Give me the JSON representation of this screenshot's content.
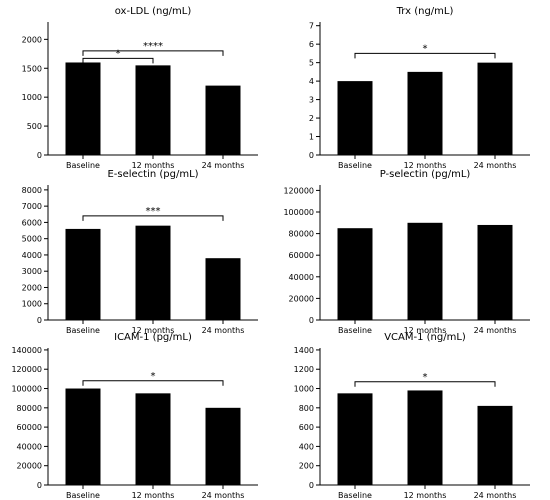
{
  "chart_data": [
    {
      "type": "bar",
      "title": "ox-LDL (ng/mL)",
      "categories": [
        "Baseline",
        "12 months",
        "24 months"
      ],
      "values": [
        1600,
        1550,
        1200
      ],
      "ylim": [
        0,
        2300
      ],
      "yticks": [
        0,
        500,
        1000,
        1500,
        2000
      ],
      "bar_color": "#000000",
      "annotations": [
        {
          "from": 0,
          "to": 1,
          "y": 1670,
          "label": "*"
        },
        {
          "from": 0,
          "to": 2,
          "y": 1800,
          "label": "****"
        }
      ]
    },
    {
      "type": "bar",
      "title": "Trx (ng/mL)",
      "categories": [
        "Baseline",
        "12 months",
        "24 months"
      ],
      "values": [
        4,
        4.5,
        5
      ],
      "ylim": [
        0,
        7.2
      ],
      "yticks": [
        0,
        1,
        2,
        3,
        4,
        5,
        6,
        7
      ],
      "bar_color": "#000000",
      "annotations": [
        {
          "from": 0,
          "to": 2,
          "y": 5.5,
          "label": "*"
        }
      ]
    },
    {
      "type": "bar",
      "title": "E-selectin (pg/mL)",
      "categories": [
        "Baseline",
        "12 months",
        "24 months"
      ],
      "values": [
        5600,
        5800,
        3800
      ],
      "ylim": [
        0,
        8300
      ],
      "yticks": [
        0,
        1000,
        2000,
        3000,
        4000,
        5000,
        6000,
        7000,
        8000
      ],
      "bar_color": "#000000",
      "annotations": [
        {
          "from": 0,
          "to": 2,
          "y": 6400,
          "label": "***"
        }
      ]
    },
    {
      "type": "bar",
      "title": "P-selectin (pg/mL)",
      "categories": [
        "Baseline",
        "12 months",
        "24 months"
      ],
      "values": [
        85000,
        90000,
        88000
      ],
      "ylim": [
        0,
        125000
      ],
      "yticks": [
        0,
        20000,
        40000,
        60000,
        80000,
        100000,
        120000
      ],
      "bar_color": "#000000",
      "annotations": []
    },
    {
      "type": "bar",
      "title": "ICAM-1 (pg/mL)",
      "categories": [
        "Baseline",
        "12 months",
        "24 months"
      ],
      "values": [
        100000,
        95000,
        80000
      ],
      "ylim": [
        0,
        142000
      ],
      "yticks": [
        0,
        20000,
        40000,
        60000,
        80000,
        100000,
        120000,
        140000
      ],
      "bar_color": "#000000",
      "annotations": [
        {
          "from": 0,
          "to": 2,
          "y": 108000,
          "label": "*"
        }
      ]
    },
    {
      "type": "bar",
      "title": "VCAM-1 (ng/mL)",
      "categories": [
        "Baseline",
        "12 months",
        "24 months"
      ],
      "values": [
        950,
        980,
        820
      ],
      "ylim": [
        0,
        1420
      ],
      "yticks": [
        0,
        200,
        400,
        600,
        800,
        1000,
        1200,
        1400
      ],
      "bar_color": "#000000",
      "annotations": [
        {
          "from": 0,
          "to": 2,
          "y": 1070,
          "label": "*"
        }
      ]
    }
  ]
}
